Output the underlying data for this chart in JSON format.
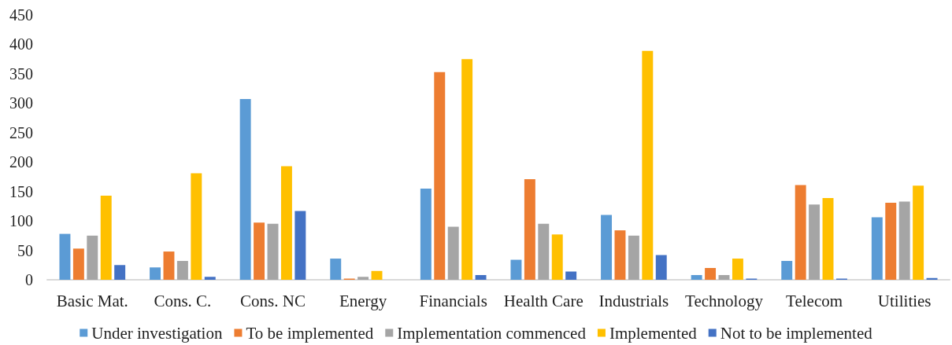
{
  "chart_data": {
    "type": "bar",
    "categories": [
      "Basic Mat.",
      "Cons. C.",
      "Cons. NC",
      "Energy",
      "Financials",
      "Health Care",
      "Industrials",
      "Technology",
      "Telecom",
      "Utilities"
    ],
    "series": [
      {
        "name": "Under investigation",
        "color": "#5b9bd5",
        "values": [
          78,
          21,
          307,
          36,
          155,
          34,
          110,
          8,
          32,
          106
        ]
      },
      {
        "name": "To be implemented",
        "color": "#ed7d31",
        "values": [
          53,
          48,
          97,
          2,
          353,
          171,
          84,
          20,
          161,
          131
        ]
      },
      {
        "name": "Implementation commenced",
        "color": "#a5a5a5",
        "values": [
          75,
          32,
          95,
          5,
          90,
          95,
          75,
          8,
          128,
          133
        ]
      },
      {
        "name": "Implemented",
        "color": "#ffc000",
        "values": [
          143,
          181,
          193,
          15,
          375,
          77,
          389,
          36,
          139,
          160
        ]
      },
      {
        "name": "Not to be implemented",
        "color": "#4472c4",
        "values": [
          25,
          5,
          117,
          0,
          8,
          14,
          42,
          2,
          2,
          3
        ]
      }
    ],
    "ylim": [
      0,
      450
    ],
    "yticks": [
      0,
      50,
      100,
      150,
      200,
      250,
      300,
      350,
      400,
      450
    ],
    "grid": false,
    "legend": "bottom"
  }
}
